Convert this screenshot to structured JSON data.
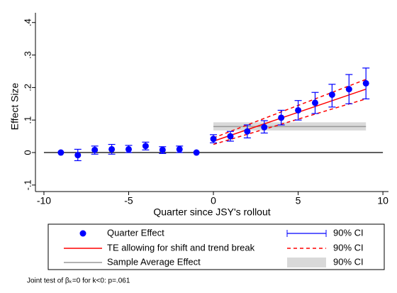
{
  "chart_data": {
    "type": "scatter",
    "x_label": "Quarter since JSY's rollout",
    "y_label": "Effect Size",
    "xlim": [
      -10.5,
      10.33
    ],
    "ylim": [
      -0.12,
      0.43
    ],
    "xticks": [
      -10,
      -5,
      0,
      5,
      10
    ],
    "yticks": [
      {
        "value": -0.1,
        "label": "-.1"
      },
      0,
      {
        "value": 0.1,
        "label": ".1"
      },
      {
        "value": 0.2,
        "label": ".2"
      },
      {
        "value": 0.3,
        "label": ".3"
      },
      {
        "value": 0.4,
        "label": ".4"
      }
    ],
    "series": [
      {
        "name": "Quarter Effect",
        "color": "#0000ff",
        "ci_label": "90% CI",
        "x": [
          -9,
          -8,
          -7,
          -6,
          -5,
          -4,
          -3,
          -2,
          -1,
          0,
          1,
          2,
          3,
          4,
          5,
          6,
          7,
          8,
          9
        ],
        "values": [
          0,
          -0.008,
          0.008,
          0.01,
          0.01,
          0.02,
          0.008,
          0.01,
          0,
          0.042,
          0.05,
          0.065,
          0.078,
          0.107,
          0.13,
          0.153,
          0.178,
          0.195,
          0.213
        ],
        "ci_low": [
          null,
          -0.025,
          -0.005,
          -0.005,
          0,
          0.008,
          -0.003,
          0,
          null,
          0.03,
          0.035,
          0.045,
          0.06,
          0.085,
          0.1,
          0.12,
          0.14,
          0.15,
          0.165
        ],
        "ci_high": [
          null,
          0.01,
          0.02,
          0.025,
          0.022,
          0.032,
          0.018,
          0.02,
          null,
          0.055,
          0.065,
          0.085,
          0.098,
          0.13,
          0.16,
          0.185,
          0.21,
          0.24,
          0.26
        ]
      }
    ],
    "trend": {
      "name": "TE allowing for shift and trend break",
      "color": "#ff0000",
      "ci_label": "90% CI",
      "x": [
        0,
        9
      ],
      "values": [
        0.035,
        0.195
      ],
      "ci_low": [
        0.025,
        0.165
      ],
      "ci_high": [
        0.045,
        0.225
      ]
    },
    "average": {
      "name": "Sample Average Effect",
      "color": "#999999",
      "ci_color": "#d9d9d9",
      "ci_label": "90% CI",
      "x": [
        0,
        9
      ],
      "value": 0.08,
      "ci_low": 0.068,
      "ci_high": 0.093
    },
    "footnote": "Joint test of βₖ=0 for k<0: p=.061"
  }
}
